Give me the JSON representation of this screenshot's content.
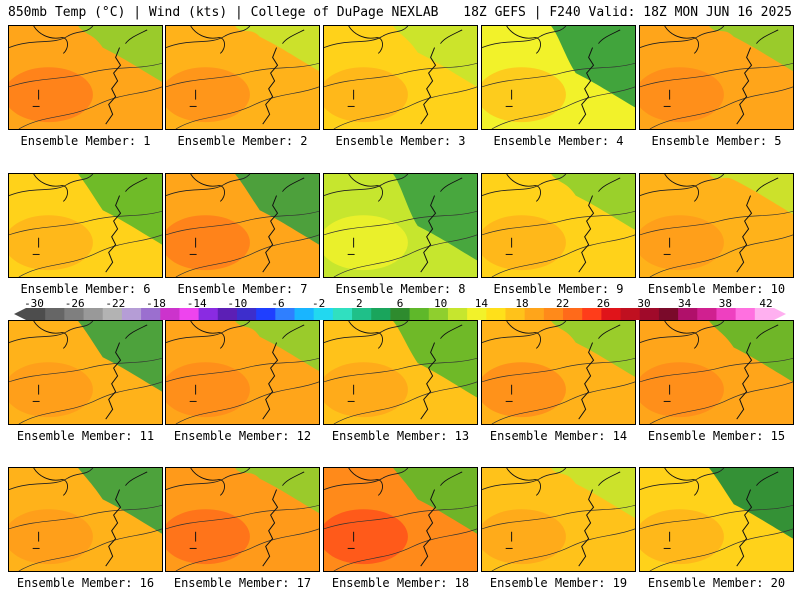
{
  "header": {
    "left_title": "850mb Temp (°C) | Wind (kts) | College of DuPage NEXLAB",
    "right_title": "18Z GEFS | F240 Valid: 18Z MON JUN 16 2025"
  },
  "colorbar": {
    "labels": [
      "-30",
      "-26",
      "-22",
      "-18",
      "-14",
      "-10",
      "-6",
      "-2",
      "2",
      "6",
      "10",
      "14",
      "18",
      "22",
      "26",
      "30",
      "34",
      "38",
      "42"
    ],
    "colors": [
      "#4d4d4d",
      "#666666",
      "#7f7f7f",
      "#999999",
      "#b3b3b3",
      "#b59dd6",
      "#9b6fcf",
      "#cc33cc",
      "#ee44ee",
      "#8a2be2",
      "#5c1fb5",
      "#3d2ecc",
      "#1f3fff",
      "#2f7fff",
      "#19b5ff",
      "#22d8f0",
      "#30e0c0",
      "#1fc089",
      "#1aa55c",
      "#2e8b2e",
      "#5fb82a",
      "#8fcf2e",
      "#c6e62e",
      "#f2f22a",
      "#ffe01a",
      "#ffc21a",
      "#ffa51a",
      "#ff8a1a",
      "#ff6a1a",
      "#ff3d1a",
      "#e0141a",
      "#c01020",
      "#a00a2a",
      "#7a0a2a",
      "#b0106a",
      "#d02090",
      "#ee40c0",
      "#ff70e0",
      "#ffb0f0"
    ]
  },
  "members": [
    {
      "label": "Ensemble Member: 1",
      "fill": "#ffa51a",
      "accent": "#ff7a1a",
      "green": "#8fcf2e",
      "green_level": 0.3
    },
    {
      "label": "Ensemble Member: 2",
      "fill": "#ffb21a",
      "accent": "#ff8f1a",
      "green": "#c6e62e",
      "green_level": 0.2
    },
    {
      "label": "Ensemble Member: 3",
      "fill": "#ffd21a",
      "accent": "#ffb21a",
      "green": "#c6e62e",
      "green_level": 0.35
    },
    {
      "label": "Ensemble Member: 4",
      "fill": "#f2f22a",
      "accent": "#ffc21a",
      "green": "#2e9b3e",
      "green_level": 0.55
    },
    {
      "label": "Ensemble Member: 5",
      "fill": "#ffa51a",
      "accent": "#ff8a1a",
      "green": "#8fcf2e",
      "green_level": 0.2
    },
    {
      "label": "Ensemble Member: 6",
      "fill": "#ffd21a",
      "accent": "#ffb21a",
      "green": "#5fb82a",
      "green_level": 0.45
    },
    {
      "label": "Ensemble Member: 7",
      "fill": "#ffa51a",
      "accent": "#ff7a1a",
      "green": "#3aa040",
      "green_level": 0.45
    },
    {
      "label": "Ensemble Member: 8",
      "fill": "#c6e62e",
      "accent": "#f2f22a",
      "green": "#3aa040",
      "green_level": 0.6
    },
    {
      "label": "Ensemble Member: 9",
      "fill": "#ffd21a",
      "accent": "#ffb21a",
      "green": "#8fcf2e",
      "green_level": 0.3
    },
    {
      "label": "Ensemble Member: 10",
      "fill": "#ffb21a",
      "accent": "#ff9a1a",
      "green": "#c6e62e",
      "green_level": 0.15
    },
    {
      "label": "Ensemble Member: 11",
      "fill": "#ffb21a",
      "accent": "#ff9a1a",
      "green": "#3aa040",
      "green_level": 0.45
    },
    {
      "label": "Ensemble Member: 12",
      "fill": "#ffa51a",
      "accent": "#ff8a1a",
      "green": "#8fcf2e",
      "green_level": 0.25
    },
    {
      "label": "Ensemble Member: 13",
      "fill": "#ffc21a",
      "accent": "#ffa51a",
      "green": "#5fb82a",
      "green_level": 0.5
    },
    {
      "label": "Ensemble Member: 14",
      "fill": "#ffb21a",
      "accent": "#ff8a1a",
      "green": "#8fcf2e",
      "green_level": 0.3
    },
    {
      "label": "Ensemble Member: 15",
      "fill": "#ffa51a",
      "accent": "#ff8a1a",
      "green": "#5fb82a",
      "green_level": 0.35
    },
    {
      "label": "Ensemble Member: 16",
      "fill": "#ffb21a",
      "accent": "#ff9a1a",
      "green": "#3aa040",
      "green_level": 0.4
    },
    {
      "label": "Ensemble Member: 17",
      "fill": "#ff9a1a",
      "accent": "#ff6a1a",
      "green": "#8fcf2e",
      "green_level": 0.2
    },
    {
      "label": "Ensemble Member: 18",
      "fill": "#ff8a1a",
      "accent": "#ff4d1a",
      "green": "#5fb82a",
      "green_level": 0.4
    },
    {
      "label": "Ensemble Member: 19",
      "fill": "#ffc21a",
      "accent": "#ffa51a",
      "green": "#c6e62e",
      "green_level": 0.25
    },
    {
      "label": "Ensemble Member: 20",
      "fill": "#ffd21a",
      "accent": "#ffb21a",
      "green": "#1e8a3a",
      "green_level": 0.45
    }
  ]
}
